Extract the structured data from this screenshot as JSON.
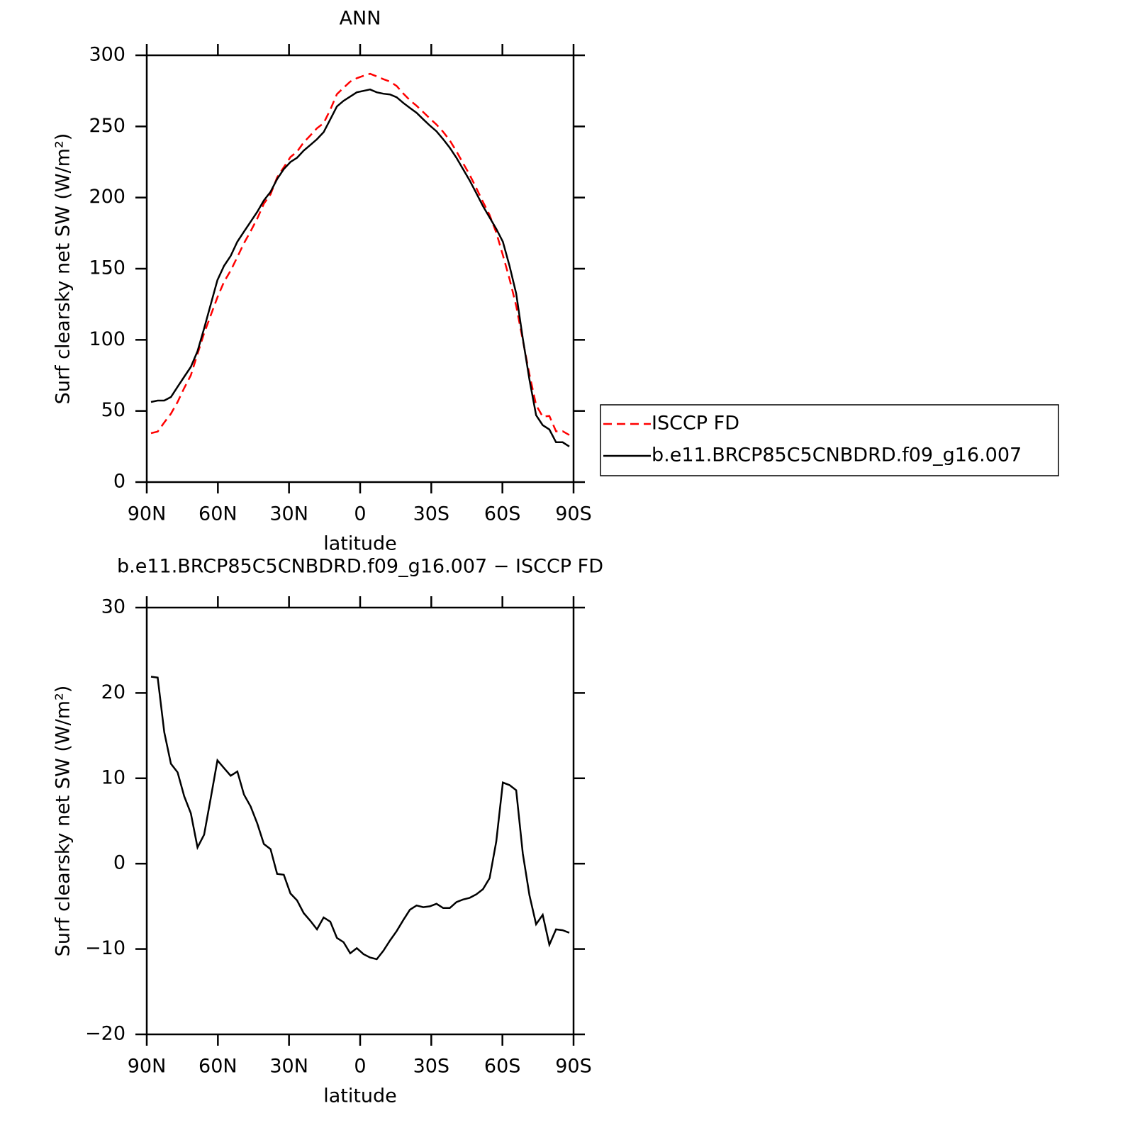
{
  "chart_data": [
    {
      "type": "line",
      "title": "ANN",
      "xlabel": "latitude",
      "ylabel": "Surf clearsky net SW (W/m²)",
      "x": [
        88.2,
        85.4,
        82.6,
        79.8,
        77.0,
        74.2,
        71.4,
        68.6,
        65.8,
        63.0,
        60.2,
        57.4,
        54.6,
        51.8,
        49.0,
        46.2,
        43.4,
        40.6,
        37.8,
        35.0,
        32.2,
        29.4,
        26.6,
        23.8,
        21.0,
        18.2,
        15.4,
        12.6,
        9.8,
        7.0,
        4.2,
        1.4,
        -1.4,
        -4.2,
        -7.0,
        -9.8,
        -12.6,
        -15.4,
        -18.2,
        -21.0,
        -23.8,
        -26.6,
        -29.4,
        -32.2,
        -35.0,
        -37.8,
        -40.6,
        -43.4,
        -46.2,
        -49.0,
        -51.8,
        -54.6,
        -57.4,
        -60.2,
        -63.0,
        -65.8,
        -68.6,
        -71.4,
        -74.2,
        -77.0,
        -79.8,
        -82.6,
        -85.4,
        -88.2
      ],
      "series": [
        {
          "name": "ISCCP FD",
          "color": "#ff0000",
          "line_style": "dashed",
          "values": [
            34.4,
            35.5,
            41.9,
            48.1,
            56.3,
            66.1,
            75.1,
            90.1,
            104.6,
            117.3,
            129.9,
            140.8,
            148.7,
            158.2,
            167.9,
            176.3,
            185.3,
            195.7,
            202.3,
            214.2,
            221.3,
            228.5,
            232.3,
            238.8,
            243.7,
            248.7,
            252.3,
            261.8,
            272.7,
            277.2,
            281.5,
            283.9,
            285.6,
            287.0,
            285.2,
            283.2,
            281.5,
            278.4,
            273.1,
            268.4,
            264.5,
            260.1,
            255.6,
            251.3,
            246.2,
            240.2,
            232.5,
            224.2,
            216.0,
            206.6,
            197.0,
            187.7,
            175.4,
            159.5,
            142.8,
            123.9,
            99.8,
            75.7,
            54.1,
            46.0,
            46.5,
            35.7,
            35.8,
            33.1
          ]
        },
        {
          "name": "b.e11.BRCP85C5CNBDRD.f09_g16.007",
          "color": "#000000",
          "line_style": "solid",
          "values": [
            56.3,
            57.3,
            57.3,
            59.8,
            67.0,
            74.0,
            81.0,
            92.0,
            108.0,
            125.0,
            142.0,
            152.0,
            159.0,
            169.0,
            176.0,
            183.0,
            190.0,
            198.0,
            204.0,
            213.0,
            220.0,
            225.0,
            228.0,
            233.0,
            237.0,
            241.0,
            246.0,
            255.0,
            264.0,
            268.0,
            271.0,
            274.0,
            275.0,
            276.0,
            274.0,
            273.0,
            272.5,
            270.5,
            266.5,
            263.0,
            259.6,
            255.0,
            250.6,
            246.6,
            241.0,
            235.0,
            228.0,
            220.0,
            212.0,
            203.0,
            194.0,
            186.0,
            178.0,
            169.0,
            152.0,
            132.5,
            101.0,
            72.0,
            47.0,
            40.0,
            37.0,
            28.0,
            28.0,
            25.0
          ]
        }
      ],
      "xlim": [
        90,
        -90
      ],
      "xticks": [
        {
          "value": 90,
          "label": "90N"
        },
        {
          "value": 60,
          "label": "60N"
        },
        {
          "value": 30,
          "label": "30N"
        },
        0,
        {
          "value": -30,
          "label": "30S"
        },
        {
          "value": -60,
          "label": "60S"
        },
        {
          "value": -90,
          "label": "90S"
        }
      ],
      "ylim": [
        0,
        300
      ],
      "yticks": [
        0,
        50,
        100,
        150,
        200,
        250,
        300
      ],
      "legend": "right"
    },
    {
      "type": "line",
      "title": "b.e11.BRCP85C5CNBDRD.f09_g16.007 − ISCCP FD",
      "xlabel": "latitude",
      "ylabel": "Surf clearsky net SW (W/m²)",
      "x": [
        88.2,
        85.4,
        82.6,
        79.8,
        77.0,
        74.2,
        71.4,
        68.6,
        65.8,
        63.0,
        60.2,
        57.4,
        54.6,
        51.8,
        49.0,
        46.2,
        43.4,
        40.6,
        37.8,
        35.0,
        32.2,
        29.4,
        26.6,
        23.8,
        21.0,
        18.2,
        15.4,
        12.6,
        9.8,
        7.0,
        4.2,
        1.4,
        -1.4,
        -4.2,
        -7.0,
        -9.8,
        -12.6,
        -15.4,
        -18.2,
        -21.0,
        -23.8,
        -26.6,
        -29.4,
        -32.2,
        -35.0,
        -37.8,
        -40.6,
        -43.4,
        -46.2,
        -49.0,
        -51.8,
        -54.6,
        -57.4,
        -60.2,
        -63.0,
        -65.8,
        -68.6,
        -71.4,
        -74.2,
        -77.0,
        -79.8,
        -82.6,
        -85.4,
        -88.2
      ],
      "values": [
        21.9,
        21.8,
        15.4,
        11.7,
        10.7,
        7.9,
        5.9,
        1.9,
        3.4,
        7.7,
        12.1,
        11.2,
        10.3,
        10.8,
        8.1,
        6.7,
        4.7,
        2.3,
        1.7,
        -1.2,
        -1.3,
        -3.5,
        -4.3,
        -5.8,
        -6.7,
        -7.7,
        -6.3,
        -6.8,
        -8.7,
        -9.2,
        -10.5,
        -9.9,
        -10.6,
        -11.0,
        -11.2,
        -10.2,
        -9.0,
        -7.9,
        -6.6,
        -5.4,
        -4.9,
        -5.1,
        -5.0,
        -4.7,
        -5.2,
        -5.2,
        -4.5,
        -4.2,
        -4.0,
        -3.6,
        -3.0,
        -1.7,
        2.6,
        9.5,
        9.2,
        8.6,
        1.2,
        -3.7,
        -7.1,
        -6.0,
        -9.5,
        -7.7,
        -7.8,
        -8.1
      ],
      "color": "#000000",
      "xlim": [
        90,
        -90
      ],
      "xticks": [
        {
          "value": 90,
          "label": "90N"
        },
        {
          "value": 60,
          "label": "60N"
        },
        {
          "value": 30,
          "label": "30N"
        },
        0,
        {
          "value": -30,
          "label": "30S"
        },
        {
          "value": -60,
          "label": "60S"
        },
        {
          "value": -90,
          "label": "90S"
        }
      ],
      "ylim": [
        -20,
        30
      ],
      "yticks": [
        {
          "value": -20,
          "label": "−20"
        },
        {
          "value": -10,
          "label": "−10"
        },
        0,
        10,
        20,
        30
      ]
    }
  ]
}
